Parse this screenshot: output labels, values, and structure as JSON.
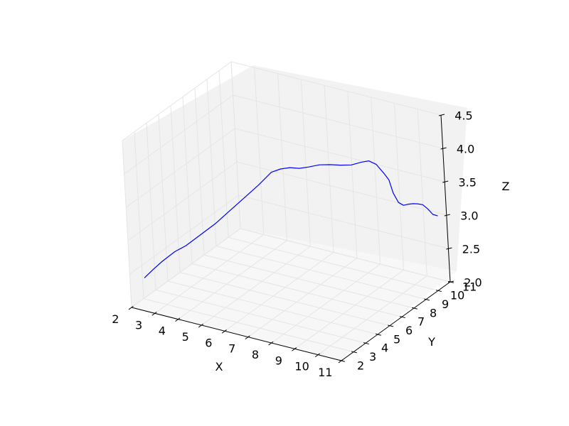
{
  "chart_data": {
    "type": "line3d",
    "title": "",
    "xlabel": "X",
    "ylabel": "Y",
    "zlabel": "Z",
    "xlim": [
      2,
      11
    ],
    "ylim": [
      2,
      11
    ],
    "zlim": [
      2.0,
      4.5
    ],
    "xticks": [
      "2",
      "3",
      "4",
      "5",
      "6",
      "7",
      "8",
      "9",
      "10",
      "11"
    ],
    "yticks": [
      "2",
      "3",
      "4",
      "5",
      "6",
      "7",
      "8",
      "9",
      "10",
      "11"
    ],
    "zticks": [
      "2.0",
      "2.5",
      "3.0",
      "3.5",
      "4.0",
      "4.5"
    ],
    "grid": true,
    "series": [
      {
        "color": "#0000ff",
        "points": [
          [
            2.3,
            2.6,
            2.39
          ],
          [
            2.6,
            2.8,
            2.52
          ],
          [
            2.9,
            3.0,
            2.64
          ],
          [
            3.3,
            3.3,
            2.78
          ],
          [
            3.7,
            3.5,
            2.88
          ],
          [
            4.2,
            3.8,
            3.05
          ],
          [
            4.7,
            4.1,
            3.22
          ],
          [
            5.2,
            4.4,
            3.42
          ],
          [
            5.7,
            4.7,
            3.62
          ],
          [
            6.2,
            5.0,
            3.82
          ],
          [
            6.6,
            5.3,
            4.0
          ],
          [
            6.9,
            5.5,
            4.05
          ],
          [
            7.2,
            5.7,
            4.07
          ],
          [
            7.5,
            5.9,
            4.06
          ],
          [
            7.8,
            6.1,
            4.08
          ],
          [
            8.1,
            6.4,
            4.1
          ],
          [
            8.4,
            6.7,
            4.09
          ],
          [
            8.7,
            7.0,
            4.07
          ],
          [
            9.0,
            7.3,
            4.06
          ],
          [
            9.3,
            7.6,
            4.09
          ],
          [
            9.5,
            7.8,
            4.1
          ],
          [
            9.7,
            8.0,
            4.04
          ],
          [
            9.9,
            8.2,
            3.9
          ],
          [
            10.0,
            8.4,
            3.78
          ],
          [
            10.1,
            8.5,
            3.58
          ],
          [
            10.2,
            8.7,
            3.42
          ],
          [
            10.3,
            8.9,
            3.36
          ],
          [
            10.4,
            9.1,
            3.36
          ],
          [
            10.5,
            9.3,
            3.35
          ],
          [
            10.6,
            9.5,
            3.33
          ],
          [
            10.7,
            9.7,
            3.3
          ],
          [
            10.8,
            9.9,
            3.22
          ],
          [
            10.9,
            10.1,
            3.12
          ],
          [
            11.0,
            10.3,
            3.08
          ]
        ]
      }
    ]
  }
}
